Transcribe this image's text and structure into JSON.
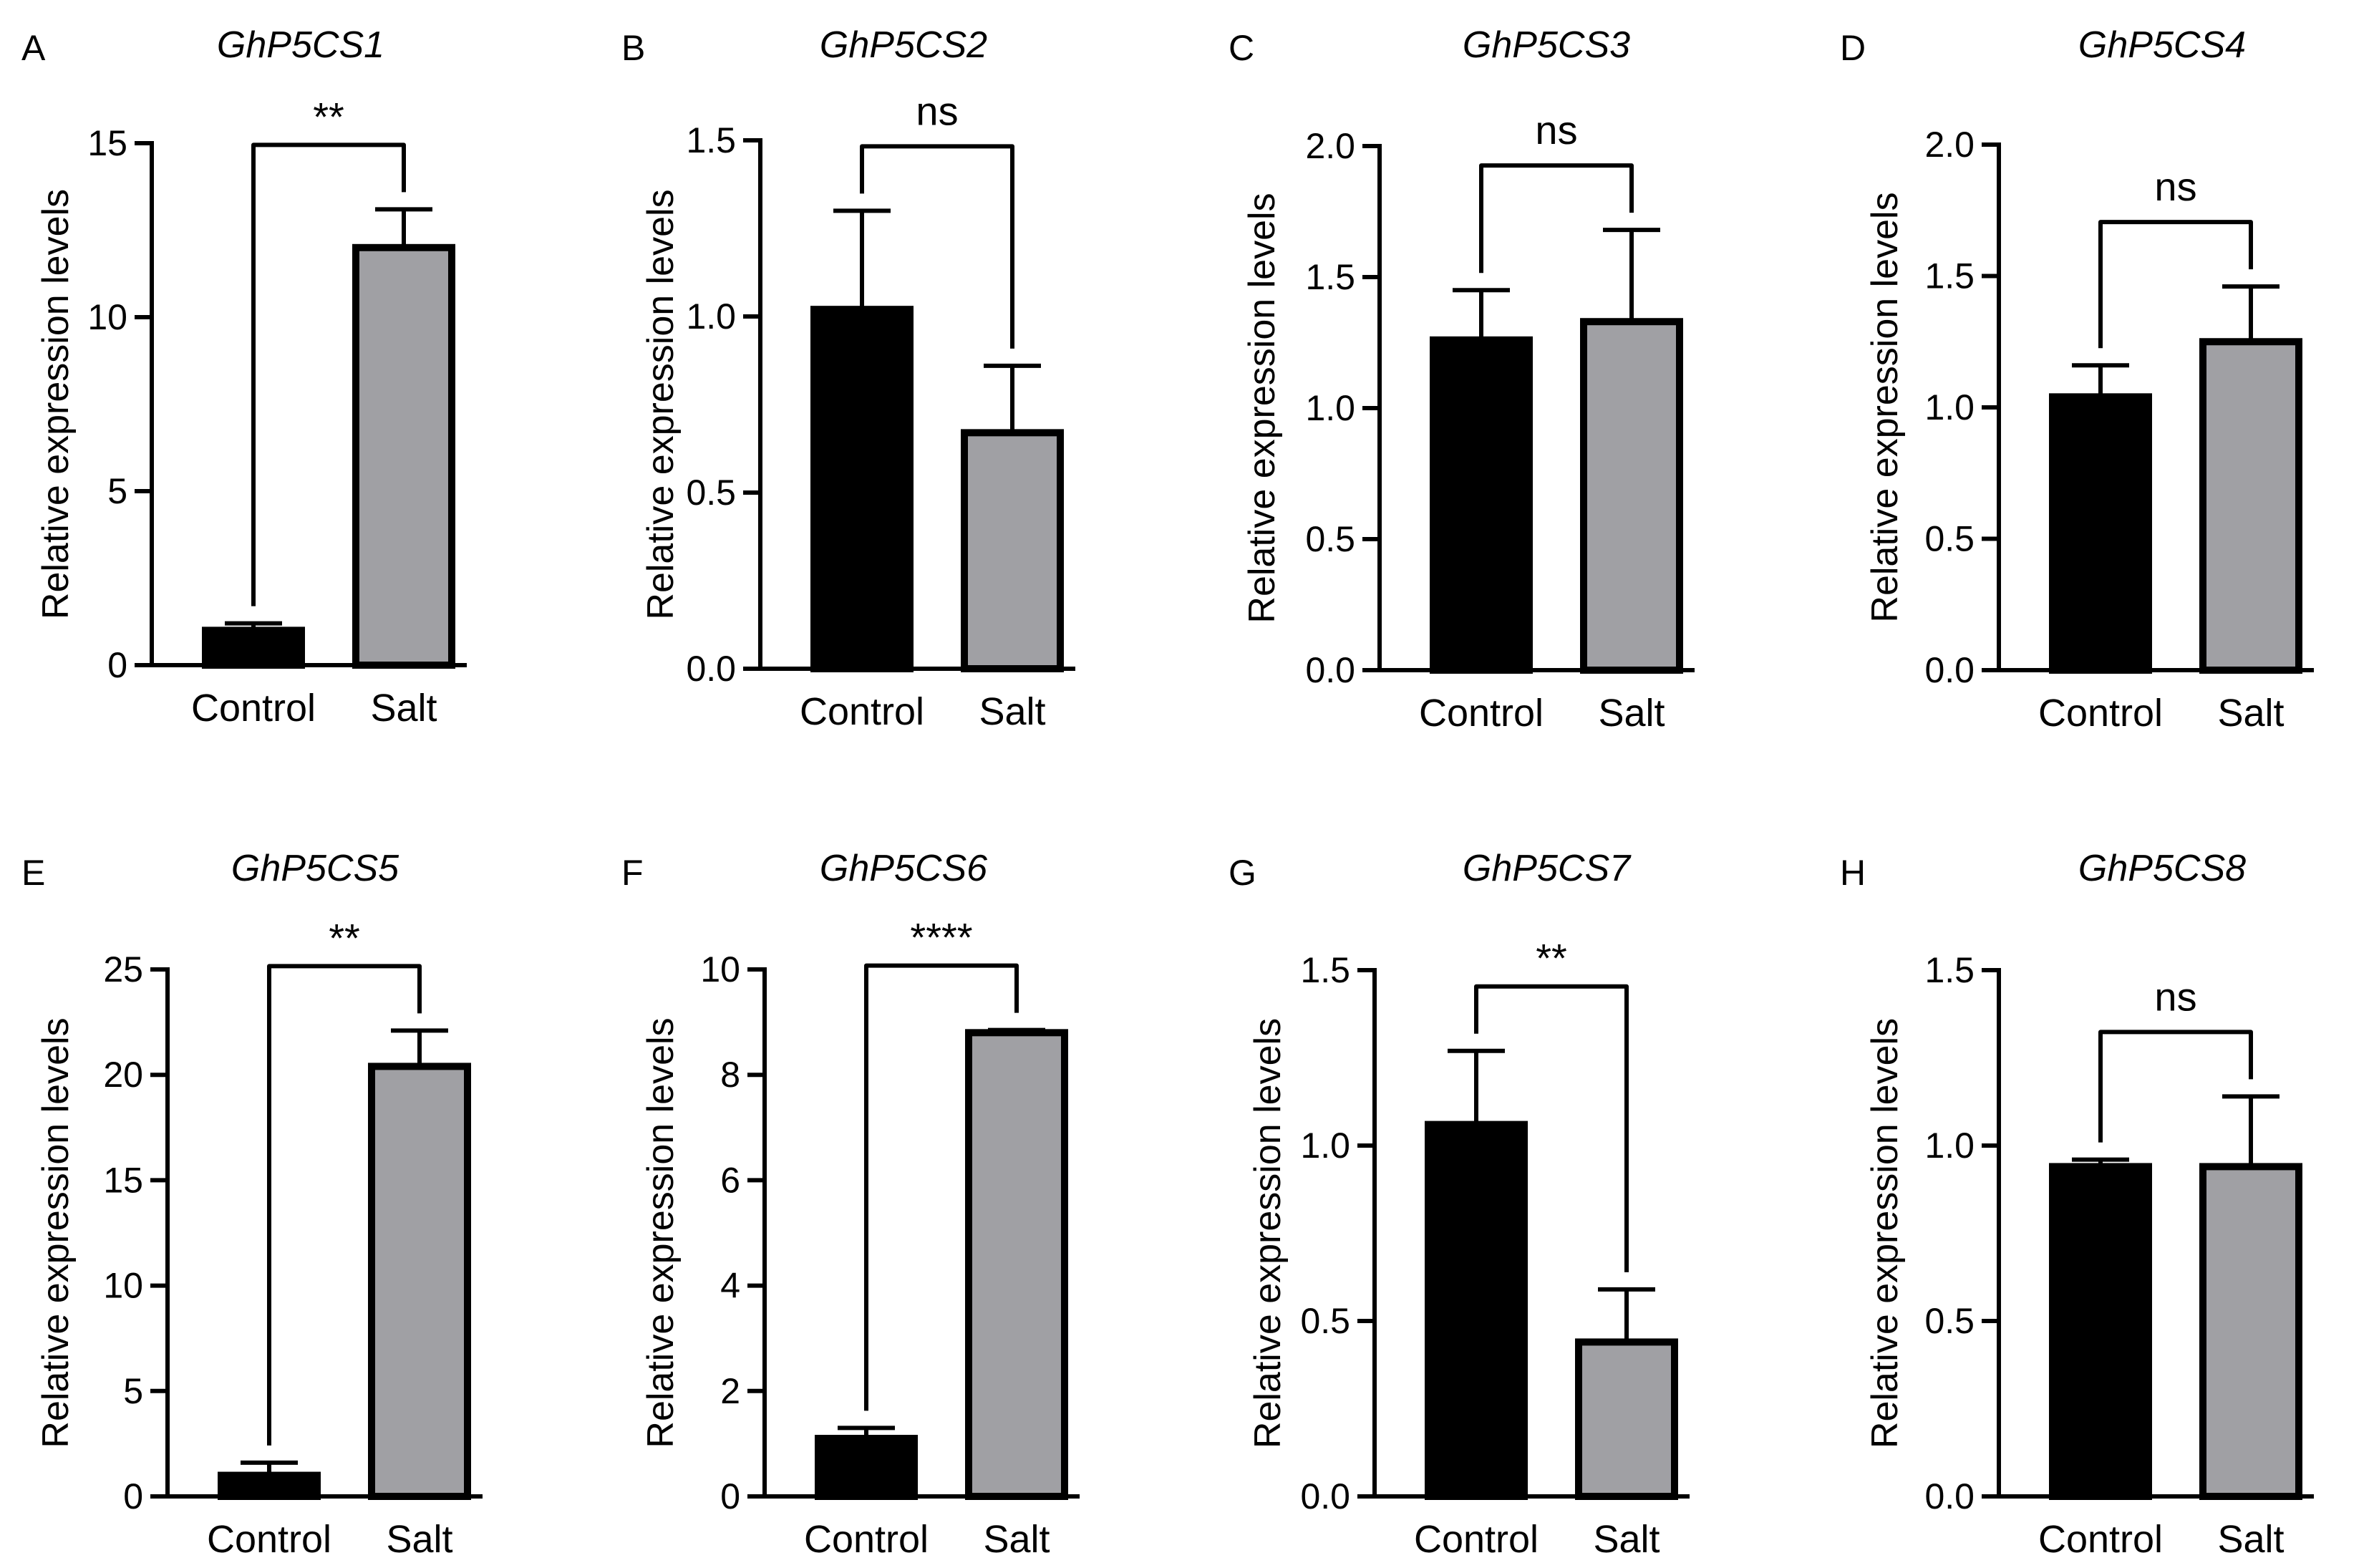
{
  "figure": {
    "description_note": "Eight bar-chart panels of relative expression levels (Control vs Salt)"
  },
  "chart_data": [
    {
      "type": "bar",
      "panel": "A",
      "title": "GhP5CS1",
      "ylabel": "Relative expression levels",
      "xlabel": "",
      "categories": [
        "Control",
        "Salt"
      ],
      "values": [
        1.0,
        12.0
      ],
      "errors": [
        0.2,
        1.1
      ],
      "bar_colors": [
        "#000000",
        "#a0a0a4"
      ],
      "ylim": [
        0,
        15
      ],
      "yticks": [
        0,
        5,
        10,
        15
      ],
      "ytick_labels": [
        "0",
        "5",
        "10",
        "15"
      ],
      "significance": "**"
    },
    {
      "type": "bar",
      "panel": "B",
      "title": "GhP5CS2",
      "ylabel": "Relative expression levels",
      "xlabel": "",
      "categories": [
        "Control",
        "Salt"
      ],
      "values": [
        1.02,
        0.67
      ],
      "errors": [
        0.28,
        0.19
      ],
      "bar_colors": [
        "#000000",
        "#a0a0a4"
      ],
      "ylim": [
        0,
        1.5
      ],
      "yticks": [
        0,
        0.5,
        1.0,
        1.5
      ],
      "ytick_labels": [
        "0.0",
        "0.5",
        "1.0",
        "1.5"
      ],
      "significance": "ns"
    },
    {
      "type": "bar",
      "panel": "C",
      "title": "GhP5CS3",
      "ylabel": "Relative expression levels",
      "xlabel": "",
      "categories": [
        "Control",
        "Salt"
      ],
      "values": [
        1.26,
        1.33
      ],
      "errors": [
        0.19,
        0.35
      ],
      "bar_colors": [
        "#000000",
        "#a0a0a4"
      ],
      "ylim": [
        0,
        2.0
      ],
      "yticks": [
        0,
        0.5,
        1.0,
        1.5,
        2.0
      ],
      "ytick_labels": [
        "0.0",
        "0.5",
        "1.0",
        "1.5",
        "2.0"
      ],
      "significance": "ns"
    },
    {
      "type": "bar",
      "panel": "D",
      "title": "GhP5CS4",
      "ylabel": "Relative expression levels",
      "xlabel": "",
      "categories": [
        "Control",
        "Salt"
      ],
      "values": [
        1.04,
        1.25
      ],
      "errors": [
        0.12,
        0.21
      ],
      "bar_colors": [
        "#000000",
        "#a0a0a4"
      ],
      "ylim": [
        0,
        2.0
      ],
      "yticks": [
        0,
        0.5,
        1.0,
        1.5,
        2.0
      ],
      "ytick_labels": [
        "0.0",
        "0.5",
        "1.0",
        "1.5",
        "2.0"
      ],
      "significance": "ns"
    },
    {
      "type": "bar",
      "panel": "E",
      "title": "GhP5CS5",
      "ylabel": "Relative expression levels",
      "xlabel": "",
      "categories": [
        "Control",
        "Salt"
      ],
      "values": [
        1.0,
        20.4
      ],
      "errors": [
        0.6,
        1.7
      ],
      "bar_colors": [
        "#000000",
        "#a0a0a4"
      ],
      "ylim": [
        0,
        25
      ],
      "yticks": [
        0,
        5,
        10,
        15,
        20,
        25
      ],
      "ytick_labels": [
        "0",
        "5",
        "10",
        "15",
        "20",
        "25"
      ],
      "significance": "**"
    },
    {
      "type": "bar",
      "panel": "F",
      "title": "GhP5CS6",
      "ylabel": "Relative expression levels",
      "xlabel": "",
      "categories": [
        "Control",
        "Salt"
      ],
      "values": [
        1.1,
        8.8
      ],
      "errors": [
        0.2,
        0.05
      ],
      "bar_colors": [
        "#000000",
        "#a0a0a4"
      ],
      "ylim": [
        0,
        10
      ],
      "yticks": [
        0,
        2,
        4,
        6,
        8,
        10
      ],
      "ytick_labels": [
        "0",
        "2",
        "4",
        "6",
        "8",
        "10"
      ],
      "significance": "****"
    },
    {
      "type": "bar",
      "panel": "G",
      "title": "GhP5CS7",
      "ylabel": "Relative expression levels",
      "xlabel": "",
      "categories": [
        "Control",
        "Salt"
      ],
      "values": [
        1.06,
        0.44
      ],
      "errors": [
        0.21,
        0.15
      ],
      "bar_colors": [
        "#000000",
        "#a0a0a4"
      ],
      "ylim": [
        0,
        1.5
      ],
      "yticks": [
        0,
        0.5,
        1.0,
        1.5
      ],
      "ytick_labels": [
        "0.0",
        "0.5",
        "1.0",
        "1.5"
      ],
      "significance": "**"
    },
    {
      "type": "bar",
      "panel": "H",
      "title": "GhP5CS8",
      "ylabel": "Relative expression levels",
      "xlabel": "",
      "categories": [
        "Control",
        "Salt"
      ],
      "values": [
        0.94,
        0.94
      ],
      "errors": [
        0.02,
        0.2
      ],
      "bar_colors": [
        "#000000",
        "#a0a0a4"
      ],
      "ylim": [
        0,
        1.5
      ],
      "yticks": [
        0,
        0.5,
        1.0,
        1.5
      ],
      "ytick_labels": [
        "0.0",
        "0.5",
        "1.0",
        "1.5"
      ],
      "significance": "ns"
    }
  ]
}
